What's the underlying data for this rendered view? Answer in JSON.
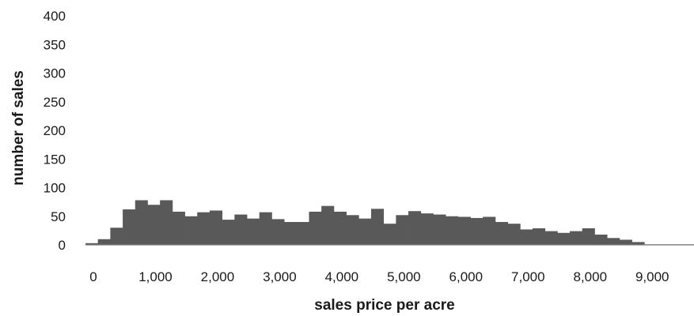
{
  "chart_data": {
    "type": "bar",
    "title": "",
    "xlabel": "sales price per acre",
    "ylabel": "number of sales",
    "xlim": [
      0,
      9800
    ],
    "ylim": [
      0,
      400
    ],
    "bin_width": 200,
    "grid": false,
    "legend": "none",
    "bar_color": "#595959",
    "x_ticks": [
      {
        "value": 0,
        "label": "0"
      },
      {
        "value": 1000,
        "label": "1,000"
      },
      {
        "value": 2000,
        "label": "2,000"
      },
      {
        "value": 3000,
        "label": "3,000"
      },
      {
        "value": 4000,
        "label": "4,000"
      },
      {
        "value": 5000,
        "label": "5,000"
      },
      {
        "value": 6000,
        "label": "6,000"
      },
      {
        "value": 7000,
        "label": "7,000"
      },
      {
        "value": 8000,
        "label": "8,000"
      },
      {
        "value": 9000,
        "label": "9,000"
      }
    ],
    "y_ticks": [
      {
        "value": 0,
        "label": "0"
      },
      {
        "value": 50,
        "label": "50"
      },
      {
        "value": 100,
        "label": "100"
      },
      {
        "value": 150,
        "label": "150"
      },
      {
        "value": 200,
        "label": "200"
      },
      {
        "value": 250,
        "label": "250"
      },
      {
        "value": 300,
        "label": "300"
      },
      {
        "value": 350,
        "label": "350"
      },
      {
        "value": 400,
        "label": "400"
      }
    ],
    "bins": [
      0,
      200,
      400,
      600,
      800,
      1000,
      1200,
      1400,
      1600,
      1800,
      2000,
      2200,
      2400,
      2600,
      2800,
      3000,
      3200,
      3400,
      3600,
      3800,
      4000,
      4200,
      4400,
      4600,
      4800,
      5000,
      5200,
      5400,
      5600,
      5800,
      6000,
      6200,
      6400,
      6600,
      6800,
      7000,
      7200,
      7400,
      7600,
      7800,
      8000,
      8200,
      8400,
      8600,
      8800,
      9000,
      9200,
      9400,
      9600
    ],
    "values": [
      3,
      10,
      30,
      62,
      78,
      70,
      78,
      58,
      50,
      57,
      60,
      44,
      53,
      46,
      57,
      45,
      40,
      40,
      58,
      68,
      58,
      52,
      46,
      63,
      37,
      52,
      59,
      55,
      53,
      50,
      49,
      47,
      49,
      40,
      37,
      27,
      29,
      24,
      21,
      24,
      29,
      18,
      12,
      9,
      5,
      1,
      1,
      1,
      1
    ]
  }
}
